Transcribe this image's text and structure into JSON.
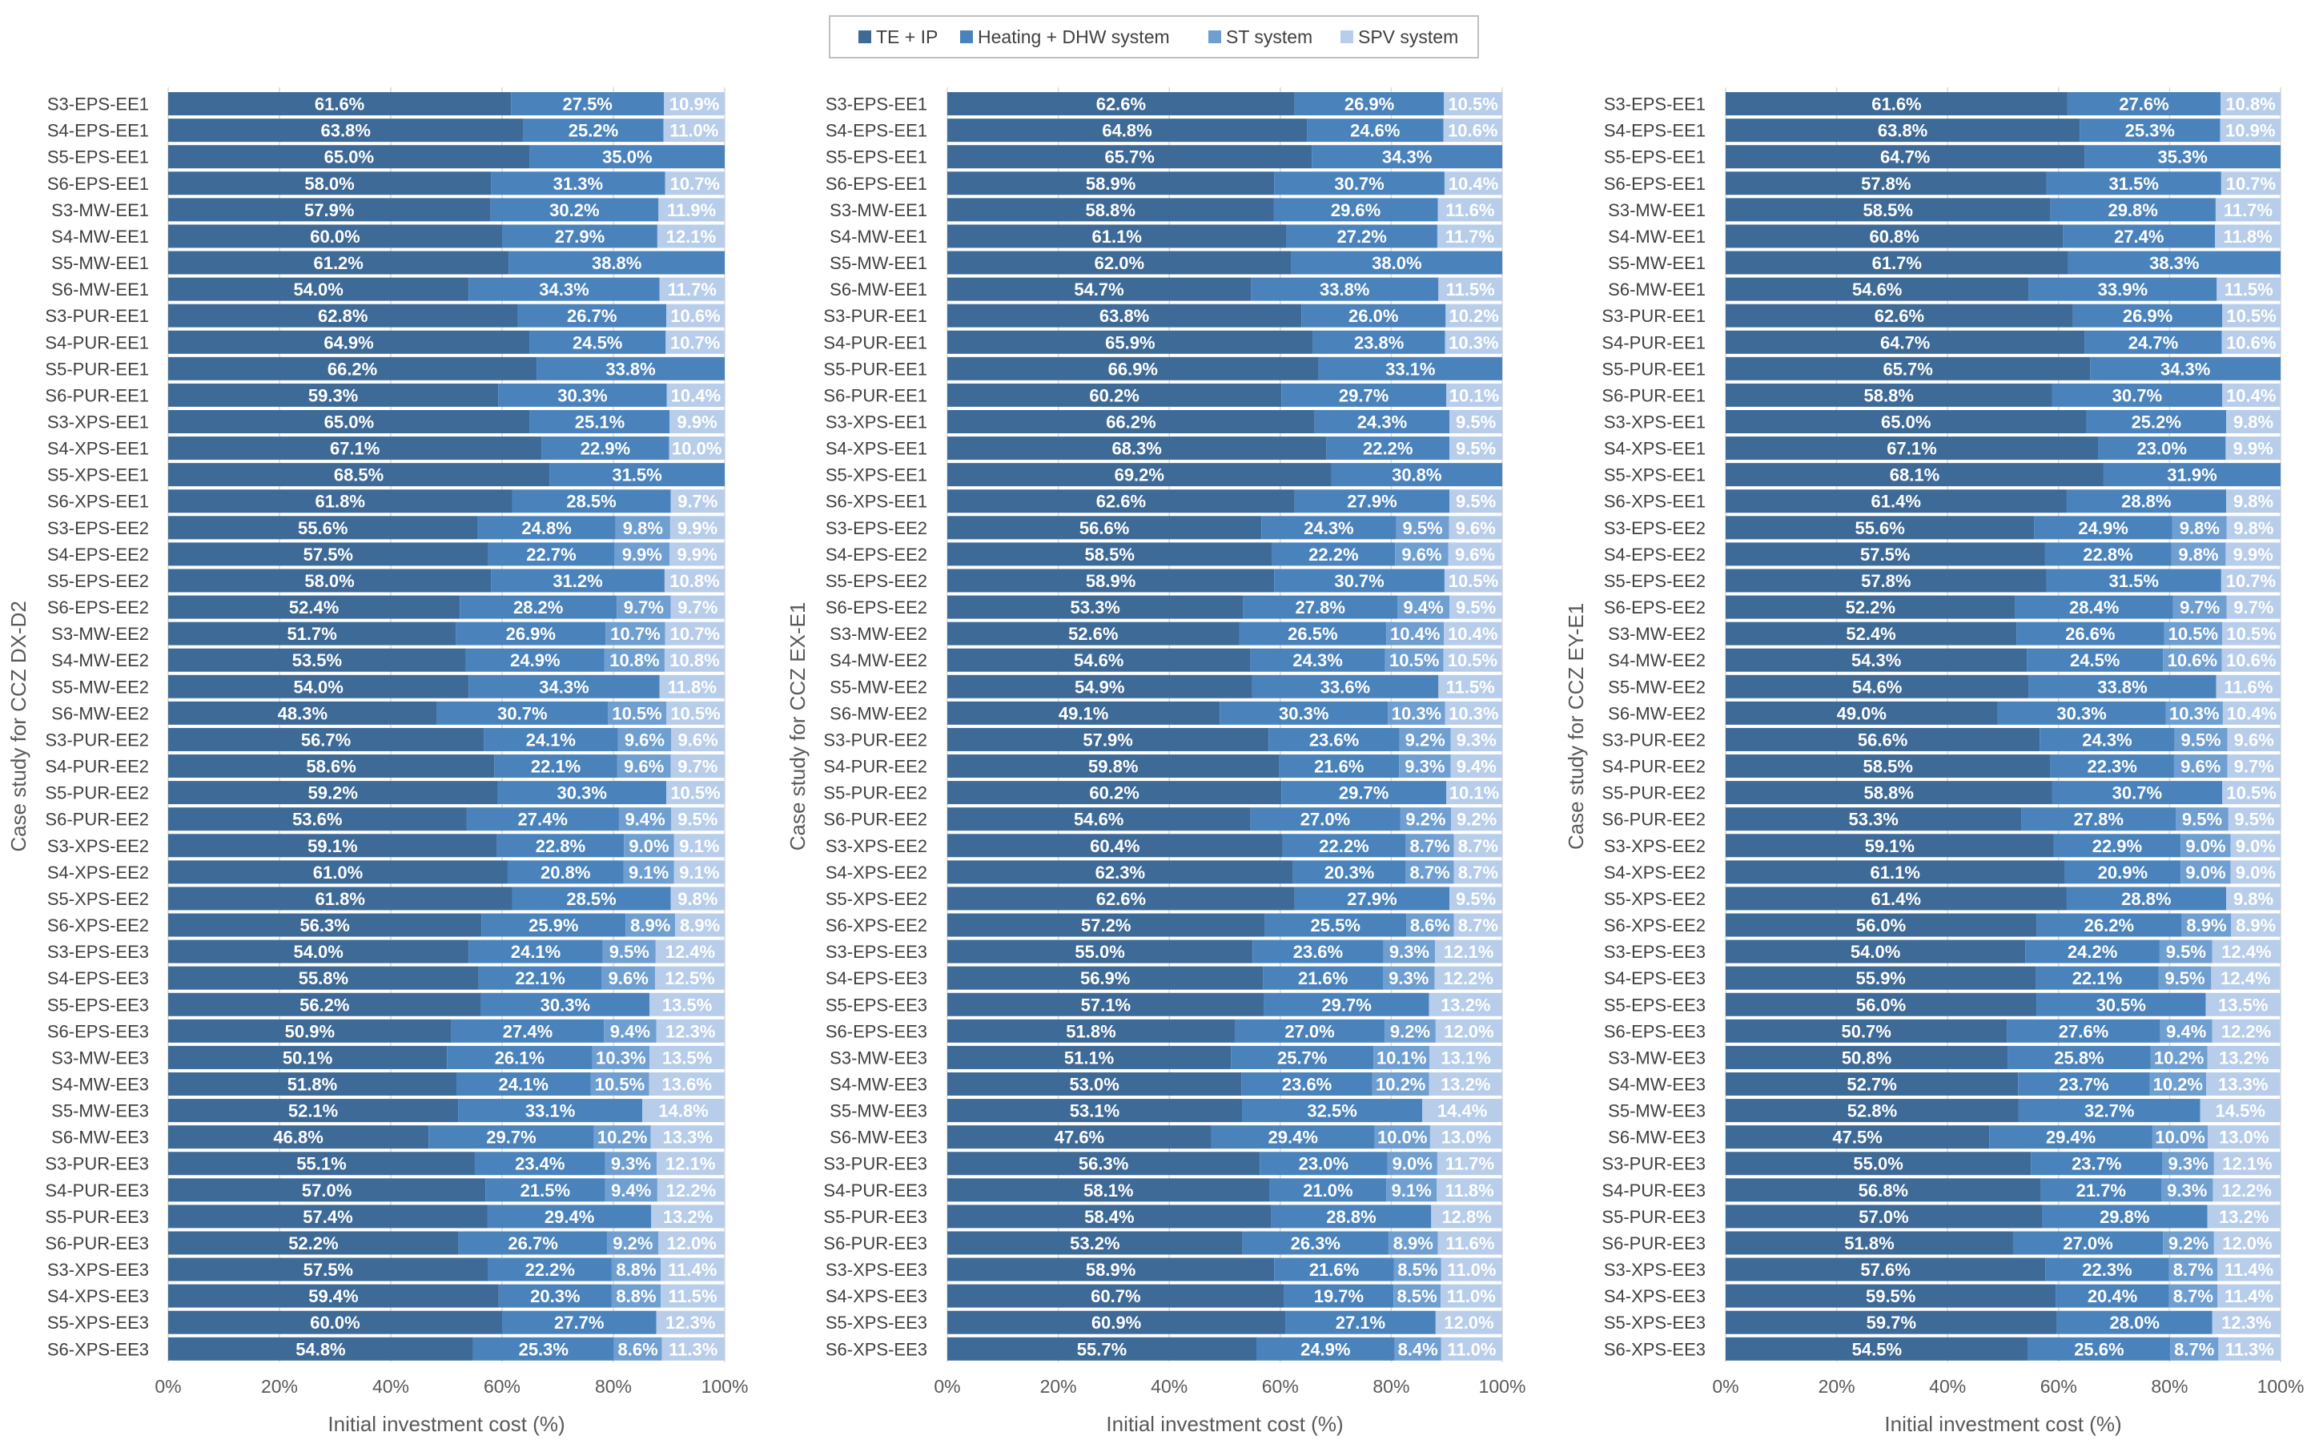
{
  "legend": {
    "items": [
      {
        "label": "TE + IP",
        "color": "#3E6A97"
      },
      {
        "label": "Heating + DHW system",
        "color": "#4A83BC"
      },
      {
        "label": "ST system",
        "color": "#6F9FD1"
      },
      {
        "label": "SPV system",
        "color": "#B7CDEA"
      }
    ]
  },
  "chart_data": [
    {
      "type": "bar",
      "orientation": "horizontal",
      "stacked": true,
      "ylabel": "Case study for CCZ DX-D2",
      "xlabel": "Initial investment cost (%)",
      "xlim": [
        0,
        100
      ],
      "x_ticks": [
        "0%",
        "20%",
        "40%",
        "60%",
        "80%",
        "100%"
      ],
      "categories": [
        "S3-EPS-EE1",
        "S4-EPS-EE1",
        "S5-EPS-EE1",
        "S6-EPS-EE1",
        "S3-MW-EE1",
        "S4-MW-EE1",
        "S5-MW-EE1",
        "S6-MW-EE1",
        "S3-PUR-EE1",
        "S4-PUR-EE1",
        "S5-PUR-EE1",
        "S6-PUR-EE1",
        "S3-XPS-EE1",
        "S4-XPS-EE1",
        "S5-XPS-EE1",
        "S6-XPS-EE1",
        "S3-EPS-EE2",
        "S4-EPS-EE2",
        "S5-EPS-EE2",
        "S6-EPS-EE2",
        "S3-MW-EE2",
        "S4-MW-EE2",
        "S5-MW-EE2",
        "S6-MW-EE2",
        "S3-PUR-EE2",
        "S4-PUR-EE2",
        "S5-PUR-EE2",
        "S6-PUR-EE2",
        "S3-XPS-EE2",
        "S4-XPS-EE2",
        "S5-XPS-EE2",
        "S6-XPS-EE2",
        "S3-EPS-EE3",
        "S4-EPS-EE3",
        "S5-EPS-EE3",
        "S6-EPS-EE3",
        "S3-MW-EE3",
        "S4-MW-EE3",
        "S5-MW-EE3",
        "S6-MW-EE3",
        "S3-PUR-EE3",
        "S4-PUR-EE3",
        "S5-PUR-EE3",
        "S6-PUR-EE3",
        "S3-XPS-EE3",
        "S4-XPS-EE3",
        "S5-XPS-EE3",
        "S6-XPS-EE3"
      ],
      "series": [
        {
          "name": "TE + IP",
          "values": [
            61.6,
            63.8,
            65.0,
            58.0,
            57.9,
            60.0,
            61.2,
            54.0,
            62.8,
            64.9,
            66.2,
            59.3,
            65.0,
            67.1,
            68.5,
            61.8,
            55.6,
            57.5,
            58.0,
            52.4,
            51.7,
            53.5,
            54.0,
            48.3,
            56.7,
            58.6,
            59.2,
            53.6,
            59.1,
            61.0,
            61.8,
            56.3,
            54.0,
            55.8,
            56.2,
            50.9,
            50.1,
            51.8,
            52.1,
            46.8,
            55.1,
            57.0,
            57.4,
            52.2,
            57.5,
            59.4,
            60.0,
            54.8
          ]
        },
        {
          "name": "Heating + DHW system",
          "values": [
            27.5,
            25.2,
            35.0,
            31.3,
            30.2,
            27.9,
            38.8,
            34.3,
            26.7,
            24.5,
            33.8,
            30.3,
            25.1,
            22.9,
            31.5,
            28.5,
            24.8,
            22.7,
            31.2,
            28.2,
            26.9,
            24.9,
            34.3,
            30.7,
            24.1,
            22.1,
            30.3,
            27.4,
            22.8,
            20.8,
            28.5,
            25.9,
            24.1,
            22.1,
            30.3,
            27.4,
            26.1,
            24.1,
            33.1,
            29.7,
            23.4,
            21.5,
            29.4,
            26.7,
            22.2,
            20.3,
            27.7,
            25.3
          ]
        },
        {
          "name": "ST system",
          "values": [
            null,
            null,
            null,
            null,
            null,
            null,
            null,
            null,
            null,
            null,
            null,
            null,
            null,
            null,
            null,
            null,
            9.8,
            9.9,
            null,
            9.7,
            10.7,
            10.8,
            null,
            10.5,
            9.6,
            9.6,
            null,
            9.4,
            9.0,
            9.1,
            null,
            8.9,
            9.5,
            9.6,
            null,
            9.4,
            10.3,
            10.5,
            null,
            10.2,
            9.3,
            9.4,
            null,
            9.2,
            8.8,
            8.8,
            null,
            8.6
          ]
        },
        {
          "name": "SPV system",
          "values": [
            10.9,
            11.0,
            null,
            10.7,
            11.9,
            12.1,
            null,
            11.7,
            10.6,
            10.7,
            null,
            10.4,
            9.9,
            10.0,
            null,
            9.7,
            9.9,
            9.9,
            10.8,
            9.7,
            10.7,
            10.8,
            11.8,
            10.5,
            9.6,
            9.7,
            10.5,
            9.5,
            9.1,
            9.1,
            9.8,
            8.9,
            12.4,
            12.5,
            13.5,
            12.3,
            13.5,
            13.6,
            14.8,
            13.3,
            12.1,
            12.2,
            13.2,
            12.0,
            11.4,
            11.5,
            12.3,
            11.3
          ]
        }
      ]
    },
    {
      "type": "bar",
      "orientation": "horizontal",
      "stacked": true,
      "ylabel": "Case study for CCZ EX-E1",
      "xlabel": "Initial investment cost (%)",
      "xlim": [
        0,
        100
      ],
      "x_ticks": [
        "0%",
        "20%",
        "40%",
        "60%",
        "80%",
        "100%"
      ],
      "categories": [
        "S3-EPS-EE1",
        "S4-EPS-EE1",
        "S5-EPS-EE1",
        "S6-EPS-EE1",
        "S3-MW-EE1",
        "S4-MW-EE1",
        "S5-MW-EE1",
        "S6-MW-EE1",
        "S3-PUR-EE1",
        "S4-PUR-EE1",
        "S5-PUR-EE1",
        "S6-PUR-EE1",
        "S3-XPS-EE1",
        "S4-XPS-EE1",
        "S5-XPS-EE1",
        "S6-XPS-EE1",
        "S3-EPS-EE2",
        "S4-EPS-EE2",
        "S5-EPS-EE2",
        "S6-EPS-EE2",
        "S3-MW-EE2",
        "S4-MW-EE2",
        "S5-MW-EE2",
        "S6-MW-EE2",
        "S3-PUR-EE2",
        "S4-PUR-EE2",
        "S5-PUR-EE2",
        "S6-PUR-EE2",
        "S3-XPS-EE2",
        "S4-XPS-EE2",
        "S5-XPS-EE2",
        "S6-XPS-EE2",
        "S3-EPS-EE3",
        "S4-EPS-EE3",
        "S5-EPS-EE3",
        "S6-EPS-EE3",
        "S3-MW-EE3",
        "S4-MW-EE3",
        "S5-MW-EE3",
        "S6-MW-EE3",
        "S3-PUR-EE3",
        "S4-PUR-EE3",
        "S5-PUR-EE3",
        "S6-PUR-EE3",
        "S3-XPS-EE3",
        "S4-XPS-EE3",
        "S5-XPS-EE3",
        "S6-XPS-EE3"
      ],
      "series": [
        {
          "name": "TE + IP",
          "values": [
            62.6,
            64.8,
            65.7,
            58.9,
            58.8,
            61.1,
            62.0,
            54.7,
            63.8,
            65.9,
            66.9,
            60.2,
            66.2,
            68.3,
            69.2,
            62.6,
            56.6,
            58.5,
            58.9,
            53.3,
            52.6,
            54.6,
            54.9,
            49.1,
            57.9,
            59.8,
            60.2,
            54.6,
            60.4,
            62.3,
            62.6,
            57.2,
            55.0,
            56.9,
            57.1,
            51.8,
            51.1,
            53.0,
            53.1,
            47.6,
            56.3,
            58.1,
            58.4,
            53.2,
            58.9,
            60.7,
            60.9,
            55.7
          ]
        },
        {
          "name": "Heating + DHW system",
          "values": [
            26.9,
            24.6,
            34.3,
            30.7,
            29.6,
            27.2,
            38.0,
            33.8,
            26.0,
            23.8,
            33.1,
            29.7,
            24.3,
            22.2,
            30.8,
            27.9,
            24.3,
            22.2,
            30.7,
            27.8,
            26.5,
            24.3,
            33.6,
            30.3,
            23.6,
            21.6,
            29.7,
            27.0,
            22.2,
            20.3,
            27.9,
            25.5,
            23.6,
            21.6,
            29.7,
            27.0,
            25.7,
            23.6,
            32.5,
            29.4,
            23.0,
            21.0,
            28.8,
            26.3,
            21.6,
            19.7,
            27.1,
            24.9
          ]
        },
        {
          "name": "ST system",
          "values": [
            null,
            null,
            null,
            null,
            null,
            null,
            null,
            null,
            null,
            null,
            null,
            null,
            null,
            null,
            null,
            null,
            9.5,
            9.6,
            null,
            9.4,
            10.4,
            10.5,
            null,
            10.3,
            9.2,
            9.3,
            null,
            9.2,
            8.7,
            8.7,
            null,
            8.6,
            9.3,
            9.3,
            null,
            9.2,
            10.1,
            10.2,
            null,
            10.0,
            9.0,
            9.1,
            null,
            8.9,
            8.5,
            8.5,
            null,
            8.4
          ]
        },
        {
          "name": "SPV system",
          "values": [
            10.5,
            10.6,
            null,
            10.4,
            11.6,
            11.7,
            null,
            11.5,
            10.2,
            10.3,
            null,
            10.1,
            9.5,
            9.5,
            null,
            9.5,
            9.6,
            9.6,
            10.5,
            9.5,
            10.4,
            10.5,
            11.5,
            10.3,
            9.3,
            9.4,
            10.1,
            9.2,
            8.7,
            8.7,
            9.5,
            8.7,
            12.1,
            12.2,
            13.2,
            12.0,
            13.1,
            13.2,
            14.4,
            13.0,
            11.7,
            11.8,
            12.8,
            11.6,
            11.0,
            11.0,
            12.0,
            11.0
          ]
        }
      ]
    },
    {
      "type": "bar",
      "orientation": "horizontal",
      "stacked": true,
      "ylabel": "Case study for CCZ EY-E1",
      "xlabel": "Initial investment cost (%)",
      "xlim": [
        0,
        100
      ],
      "x_ticks": [
        "0%",
        "20%",
        "40%",
        "60%",
        "80%",
        "100%"
      ],
      "categories": [
        "S3-EPS-EE1",
        "S4-EPS-EE1",
        "S5-EPS-EE1",
        "S6-EPS-EE1",
        "S3-MW-EE1",
        "S4-MW-EE1",
        "S5-MW-EE1",
        "S6-MW-EE1",
        "S3-PUR-EE1",
        "S4-PUR-EE1",
        "S5-PUR-EE1",
        "S6-PUR-EE1",
        "S3-XPS-EE1",
        "S4-XPS-EE1",
        "S5-XPS-EE1",
        "S6-XPS-EE1",
        "S3-EPS-EE2",
        "S4-EPS-EE2",
        "S5-EPS-EE2",
        "S6-EPS-EE2",
        "S3-MW-EE2",
        "S4-MW-EE2",
        "S5-MW-EE2",
        "S6-MW-EE2",
        "S3-PUR-EE2",
        "S4-PUR-EE2",
        "S5-PUR-EE2",
        "S6-PUR-EE2",
        "S3-XPS-EE2",
        "S4-XPS-EE2",
        "S5-XPS-EE2",
        "S6-XPS-EE2",
        "S3-EPS-EE3",
        "S4-EPS-EE3",
        "S5-EPS-EE3",
        "S6-EPS-EE3",
        "S3-MW-EE3",
        "S4-MW-EE3",
        "S5-MW-EE3",
        "S6-MW-EE3",
        "S3-PUR-EE3",
        "S4-PUR-EE3",
        "S5-PUR-EE3",
        "S6-PUR-EE3",
        "S3-XPS-EE3",
        "S4-XPS-EE3",
        "S5-XPS-EE3",
        "S6-XPS-EE3"
      ],
      "series": [
        {
          "name": "TE + IP",
          "values": [
            61.6,
            63.8,
            64.7,
            57.8,
            58.5,
            60.8,
            61.7,
            54.6,
            62.6,
            64.7,
            65.7,
            58.8,
            65.0,
            67.1,
            68.1,
            61.4,
            55.6,
            57.5,
            57.8,
            52.2,
            52.4,
            54.3,
            54.6,
            49.0,
            56.6,
            58.5,
            58.8,
            53.3,
            59.1,
            61.1,
            61.4,
            56.0,
            54.0,
            55.9,
            56.0,
            50.7,
            50.8,
            52.7,
            52.8,
            47.5,
            55.0,
            56.8,
            57.0,
            51.8,
            57.6,
            59.5,
            59.7,
            54.5
          ]
        },
        {
          "name": "Heating + DHW system",
          "values": [
            27.6,
            25.3,
            35.3,
            31.5,
            29.8,
            27.4,
            38.3,
            33.9,
            26.9,
            24.7,
            34.3,
            30.7,
            25.2,
            23.0,
            31.9,
            28.8,
            24.9,
            22.8,
            31.5,
            28.4,
            26.6,
            24.5,
            33.8,
            30.3,
            24.3,
            22.3,
            30.7,
            27.8,
            22.9,
            20.9,
            28.8,
            26.2,
            24.2,
            22.1,
            30.5,
            27.6,
            25.8,
            23.7,
            32.7,
            29.4,
            23.7,
            21.7,
            29.8,
            27.0,
            22.3,
            20.4,
            28.0,
            25.6
          ]
        },
        {
          "name": "ST system",
          "values": [
            null,
            null,
            null,
            null,
            null,
            null,
            null,
            null,
            null,
            null,
            null,
            null,
            null,
            null,
            null,
            null,
            9.8,
            9.8,
            null,
            9.7,
            10.5,
            10.6,
            null,
            10.3,
            9.5,
            9.6,
            null,
            9.5,
            9.0,
            9.0,
            null,
            8.9,
            9.5,
            9.5,
            null,
            9.4,
            10.2,
            10.2,
            null,
            10.0,
            9.3,
            9.3,
            null,
            9.2,
            8.7,
            8.7,
            null,
            8.7
          ]
        },
        {
          "name": "SPV system",
          "values": [
            10.8,
            10.9,
            null,
            10.7,
            11.7,
            11.8,
            null,
            11.5,
            10.5,
            10.6,
            null,
            10.4,
            9.8,
            9.9,
            null,
            9.8,
            9.8,
            9.9,
            10.7,
            9.7,
            10.5,
            10.6,
            11.6,
            10.4,
            9.6,
            9.7,
            10.5,
            9.5,
            9.0,
            9.0,
            9.8,
            8.9,
            12.4,
            12.4,
            13.5,
            12.2,
            13.2,
            13.3,
            14.5,
            13.0,
            12.1,
            12.2,
            13.2,
            12.0,
            11.4,
            11.4,
            12.3,
            11.3
          ]
        }
      ]
    }
  ]
}
